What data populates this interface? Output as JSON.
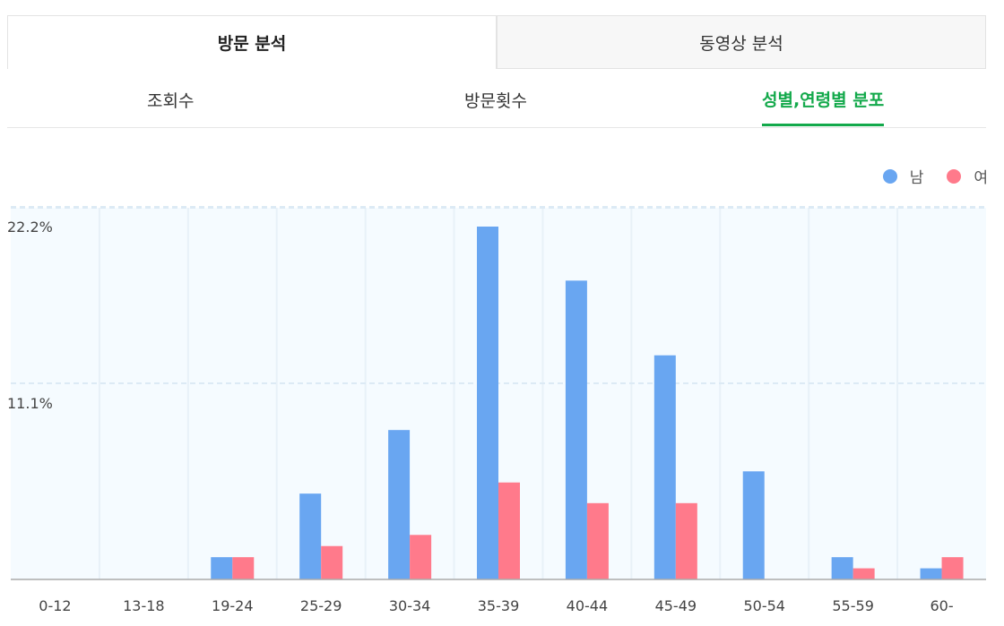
{
  "main_tabs": [
    {
      "label": "방문 분석",
      "active": true
    },
    {
      "label": "동영상 분석",
      "active": false
    }
  ],
  "sub_tabs": [
    {
      "label": "조회수",
      "active": false
    },
    {
      "label": "방문횟수",
      "active": false
    },
    {
      "label": "성별,연령별 분포",
      "active": true
    }
  ],
  "colors": {
    "male": "#69a6f1",
    "female": "#ff7a8b",
    "accent": "#13a94b"
  },
  "chart_data": {
    "type": "bar",
    "categories": [
      "0-12",
      "13-18",
      "19-24",
      "25-29",
      "30-34",
      "35-39",
      "40-44",
      "45-49",
      "50-54",
      "55-59",
      "60-"
    ],
    "series": [
      {
        "name": "남",
        "values": [
          0,
          0,
          1.4,
          5.4,
          9.4,
          22.2,
          18.8,
          14.1,
          6.8,
          1.4,
          0.7
        ]
      },
      {
        "name": "여",
        "values": [
          0,
          0,
          1.4,
          2.1,
          2.8,
          6.1,
          4.8,
          4.8,
          0,
          0.7,
          1.4
        ]
      }
    ],
    "ytick_labels": [
      "22.2%",
      "11.1%"
    ],
    "ytick_values": [
      22.2,
      11.1
    ],
    "ylim": [
      0,
      22.2
    ],
    "grid": true,
    "legend": "top-right"
  }
}
